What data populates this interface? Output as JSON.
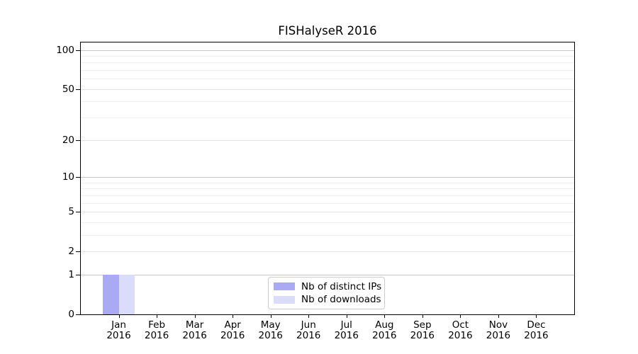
{
  "chart_data": {
    "type": "bar",
    "title": "FISHalyseR 2016",
    "categories": [
      {
        "month": "Jan",
        "year": "2016"
      },
      {
        "month": "Feb",
        "year": "2016"
      },
      {
        "month": "Mar",
        "year": "2016"
      },
      {
        "month": "Apr",
        "year": "2016"
      },
      {
        "month": "May",
        "year": "2016"
      },
      {
        "month": "Jun",
        "year": "2016"
      },
      {
        "month": "Jul",
        "year": "2016"
      },
      {
        "month": "Aug",
        "year": "2016"
      },
      {
        "month": "Sep",
        "year": "2016"
      },
      {
        "month": "Oct",
        "year": "2016"
      },
      {
        "month": "Nov",
        "year": "2016"
      },
      {
        "month": "Dec",
        "year": "2016"
      }
    ],
    "series": [
      {
        "name": "Nb of distinct IPs",
        "color": "#a9a9f4",
        "values": [
          1,
          0,
          0,
          0,
          0,
          0,
          0,
          0,
          0,
          0,
          0,
          0
        ]
      },
      {
        "name": "Nb of downloads",
        "color": "#dbdbfa",
        "values": [
          1,
          0,
          0,
          0,
          0,
          0,
          0,
          0,
          0,
          0,
          0,
          0
        ]
      }
    ],
    "yticks": [
      0,
      1,
      2,
      5,
      10,
      20,
      50,
      100
    ],
    "decade_gridlines": [
      1,
      10,
      100
    ],
    "minor_gridlines": [
      3,
      4,
      6,
      7,
      8,
      9,
      30,
      40,
      60,
      70,
      80,
      90
    ],
    "ymax": 114,
    "yscale": "log10(1+x)",
    "xlabel": "",
    "ylabel": "",
    "grid": true,
    "legend_position": "lower center"
  }
}
